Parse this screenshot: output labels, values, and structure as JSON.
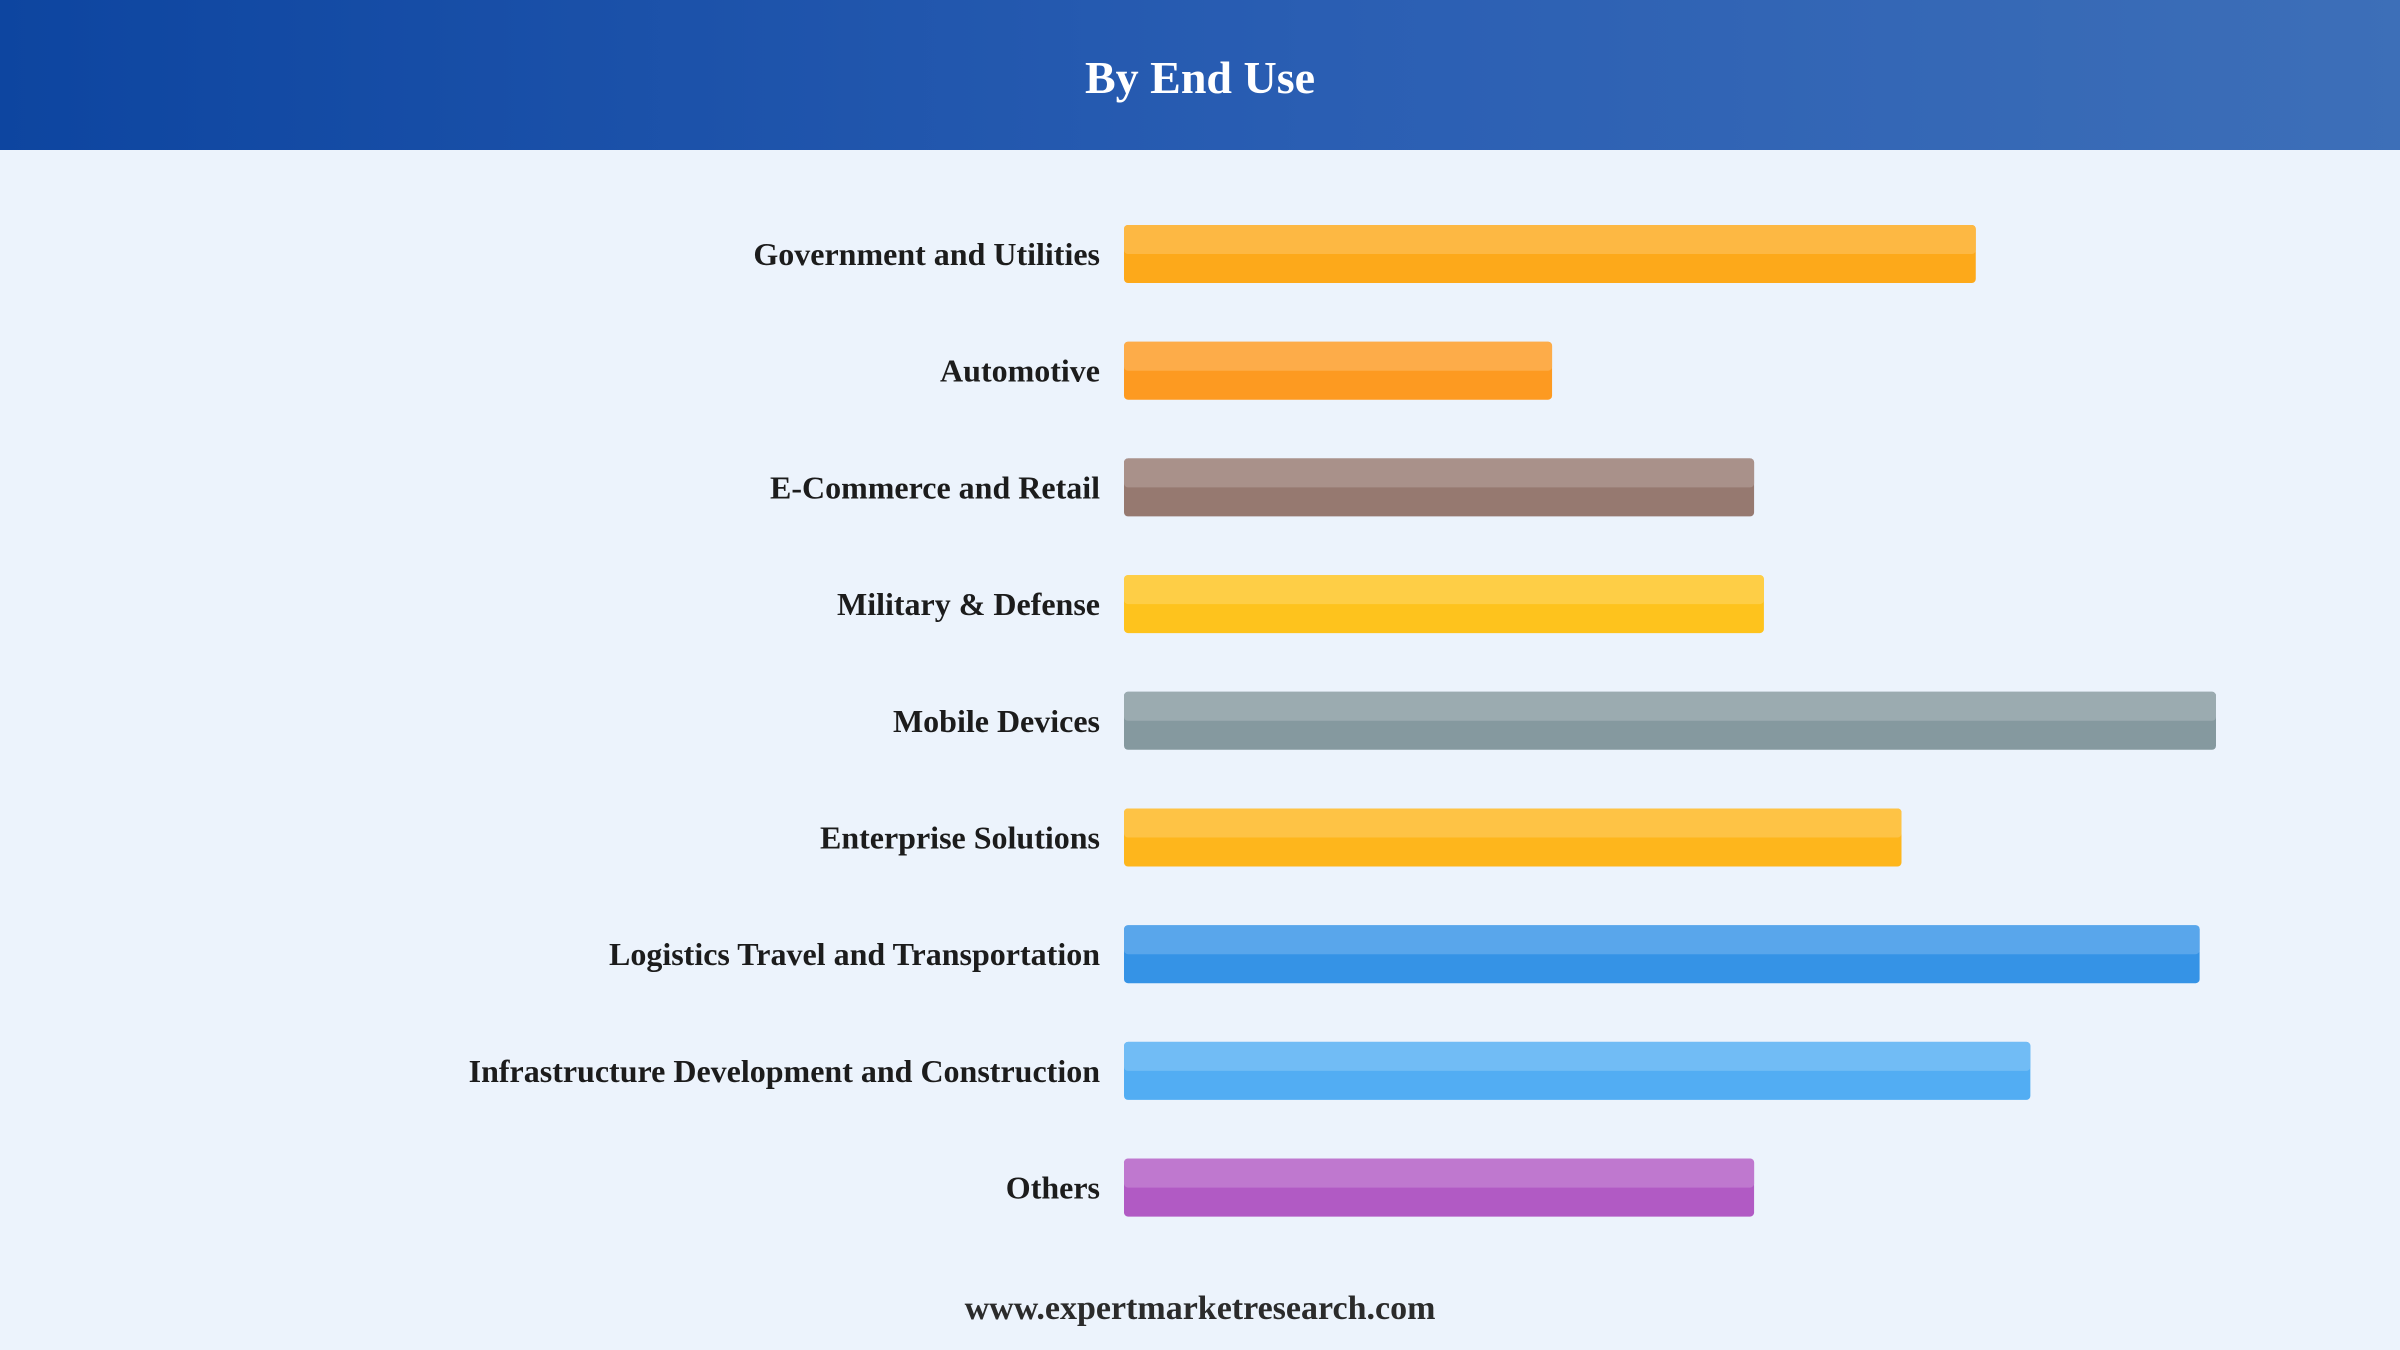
{
  "header": {
    "title": "By End Use"
  },
  "footer": {
    "website": "www.expertmarketresearch.com"
  },
  "chart_data": {
    "type": "bar",
    "orientation": "horizontal",
    "title": "By End Use",
    "xlabel": "",
    "ylabel": "",
    "grid": false,
    "legend": "none",
    "xlim": [
      0,
      100
    ],
    "categories": [
      "Government and Utilities",
      "Automotive",
      "E-Commerce and Retail",
      "Military & Defense",
      "Mobile Devices",
      "Enterprise Solutions",
      "Logistics Travel and Transportation",
      "Infrastructure Development and Construction",
      "Others"
    ],
    "values": [
      78,
      39.2,
      57.7,
      58.6,
      100,
      71.2,
      98.5,
      83,
      57.7
    ],
    "colors": [
      "#fda91a",
      "#fd9a21",
      "#967970",
      "#fec31d",
      "#85999f",
      "#feb61c",
      "#3593e6",
      "#52adf3",
      "#b15ac4"
    ]
  }
}
